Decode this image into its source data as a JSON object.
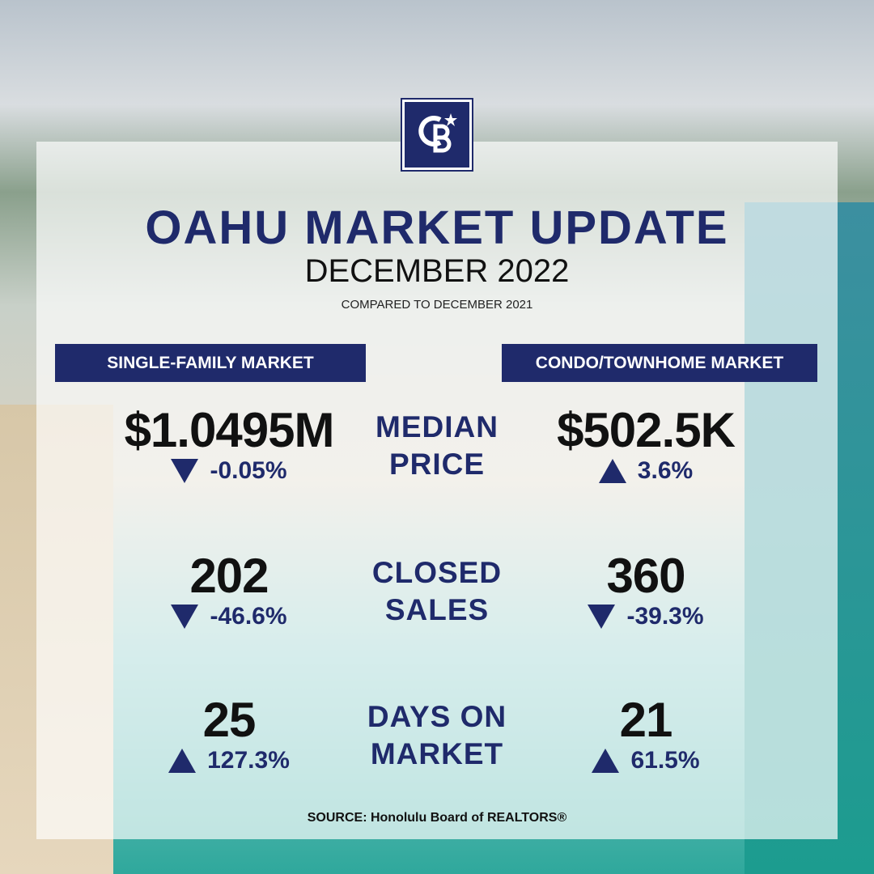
{
  "header": {
    "title": "OAHU MARKET UPDATE",
    "period": "DECEMBER 2022",
    "comparison": "COMPARED TO DECEMBER 2021"
  },
  "columns": [
    "SINGLE-FAMILY MARKET",
    "CONDO/TOWNHOME MARKET"
  ],
  "metrics": [
    {
      "label": [
        "MEDIAN",
        "PRICE"
      ],
      "single_family": {
        "value": "$1.0495M",
        "change": "-0.05%",
        "direction": "down"
      },
      "condo": {
        "value": "$502.5K",
        "change": "3.6%",
        "direction": "up"
      }
    },
    {
      "label": [
        "CLOSED",
        "SALES"
      ],
      "single_family": {
        "value": "202",
        "change": "-46.6%",
        "direction": "down"
      },
      "condo": {
        "value": "360",
        "change": "-39.3%",
        "direction": "down"
      }
    },
    {
      "label": [
        "DAYS ON",
        "MARKET"
      ],
      "single_family": {
        "value": "25",
        "change": "127.3%",
        "direction": "up"
      },
      "condo": {
        "value": "21",
        "change": "61.5%",
        "direction": "up"
      }
    }
  ],
  "source": "SOURCE: Honolulu Board of REALTORS®"
}
